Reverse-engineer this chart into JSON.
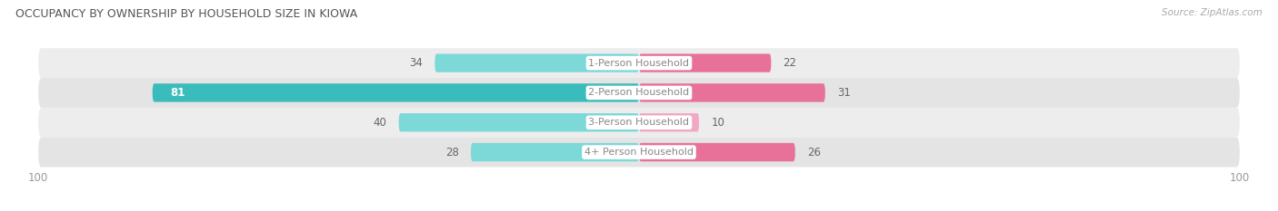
{
  "title": "OCCUPANCY BY OWNERSHIP BY HOUSEHOLD SIZE IN KIOWA",
  "source": "Source: ZipAtlas.com",
  "categories": [
    "1-Person Household",
    "2-Person Household",
    "3-Person Household",
    "4+ Person Household"
  ],
  "owner_values": [
    34,
    81,
    40,
    28
  ],
  "renter_values": [
    22,
    31,
    10,
    26
  ],
  "owner_color_strong": "#3BBCBC",
  "owner_color_light": "#7DD8D8",
  "renter_color_strong": "#E8719A",
  "renter_color_light": "#F0A8C4",
  "row_bg_colors": [
    "#EDEDED",
    "#E4E4E4",
    "#EDEDED",
    "#E4E4E4"
  ],
  "max_value": 100,
  "label_color": "#666666",
  "label_color_white": "#FFFFFF",
  "title_color": "#555555",
  "axis_label_color": "#999999",
  "center_label_bg": "#FFFFFF",
  "center_label_color": "#888888",
  "legend_owner_color": "#3BBCBC",
  "legend_renter_color": "#E8719A"
}
